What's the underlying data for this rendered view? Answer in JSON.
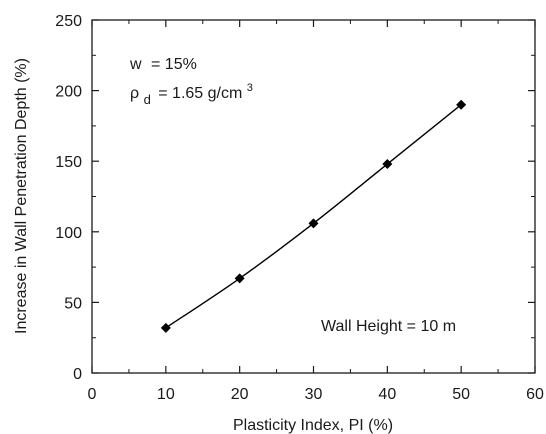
{
  "chart_data": {
    "type": "line",
    "xlabel": "Plasticity Index, PI (%)",
    "ylabel": "Increase in Wall Penetration Depth (%)",
    "xlim": [
      0,
      60
    ],
    "ylim": [
      0,
      250
    ],
    "x_ticks": [
      0,
      10,
      20,
      30,
      40,
      50,
      60
    ],
    "y_ticks": [
      0,
      50,
      100,
      150,
      200,
      250
    ],
    "grid": false,
    "series": [
      {
        "x": [
          10,
          20,
          30,
          40,
          50
        ],
        "y": [
          32,
          67,
          106,
          148,
          190
        ],
        "marker": "diamond",
        "color": "#000000"
      }
    ],
    "annotations": {
      "moisture": {
        "symbol": "w",
        "text": "= 15%"
      },
      "density": {
        "symbol": "ρ",
        "subscript": "d",
        "text": "= 1.65 g/cm",
        "superscript": "3"
      },
      "wall_height": "Wall Height = 10 m"
    }
  }
}
